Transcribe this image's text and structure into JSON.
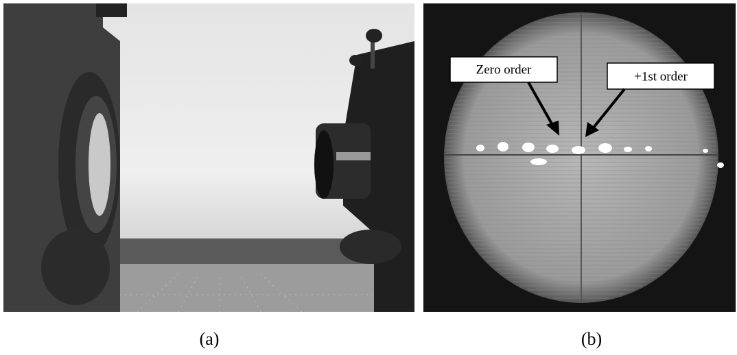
{
  "panels": [
    {
      "label": "(a)"
    },
    {
      "label": "(b)",
      "annotations": [
        "Zero order",
        "+1st order"
      ]
    }
  ]
}
